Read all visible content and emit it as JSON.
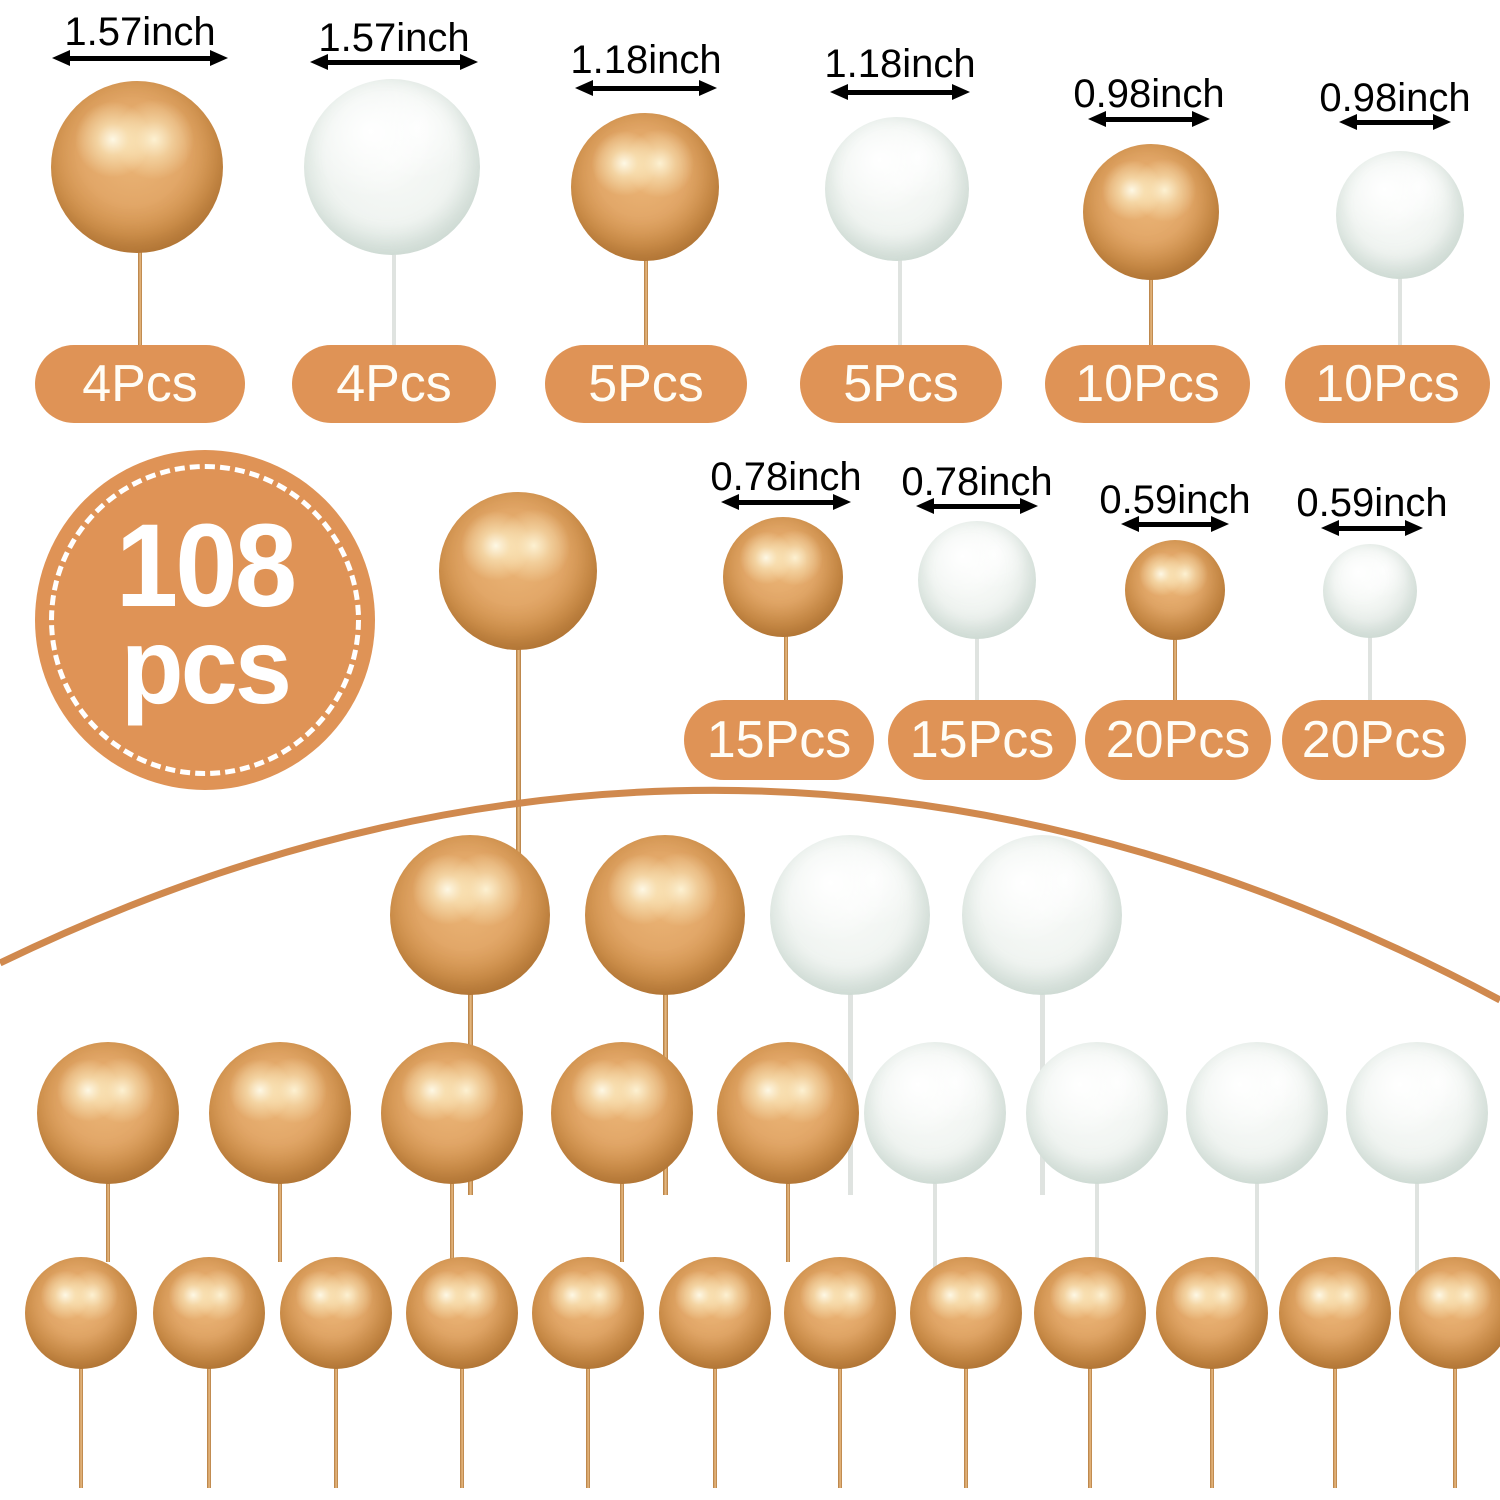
{
  "colors": {
    "accent": "#df9356",
    "arc": "#d0894e",
    "gold_stick": "#cf9254",
    "white_stick": "#e0e4e1",
    "gold_ball": "#dda164",
    "white_ball": "#eef3ef",
    "label_text": "#000000",
    "badge_text": "#fffdf6"
  },
  "total_badge": {
    "count": "108",
    "unit": "pcs"
  },
  "top_columns": [
    {
      "size": "1.57inch",
      "count": "4Pcs",
      "color": "gold"
    },
    {
      "size": "1.57inch",
      "count": "4Pcs",
      "color": "white"
    },
    {
      "size": "1.18inch",
      "count": "5Pcs",
      "color": "gold"
    },
    {
      "size": "1.18inch",
      "count": "5Pcs",
      "color": "white"
    },
    {
      "size": "0.98inch",
      "count": "10Pcs",
      "color": "gold"
    },
    {
      "size": "0.98inch",
      "count": "10Pcs",
      "color": "white"
    }
  ],
  "middle_columns": [
    {
      "size": "0.78inch",
      "count": "15Pcs",
      "color": "gold"
    },
    {
      "size": "0.78inch",
      "count": "15Pcs",
      "color": "white"
    },
    {
      "size": "0.59inch",
      "count": "20Pcs",
      "color": "gold"
    },
    {
      "size": "0.59inch",
      "count": "20Pcs",
      "color": "white"
    }
  ],
  "sample_ball_color": "gold",
  "bottom_display": {
    "large_row": [
      "gold",
      "gold",
      "white",
      "white"
    ],
    "medium_row": [
      "gold",
      "gold",
      "gold",
      "gold",
      "gold",
      "white",
      "white",
      "white",
      "white"
    ],
    "small_row": [
      "gold",
      "gold",
      "gold",
      "gold",
      "gold",
      "gold",
      "gold",
      "gold",
      "gold",
      "gold",
      "gold",
      "gold"
    ]
  }
}
